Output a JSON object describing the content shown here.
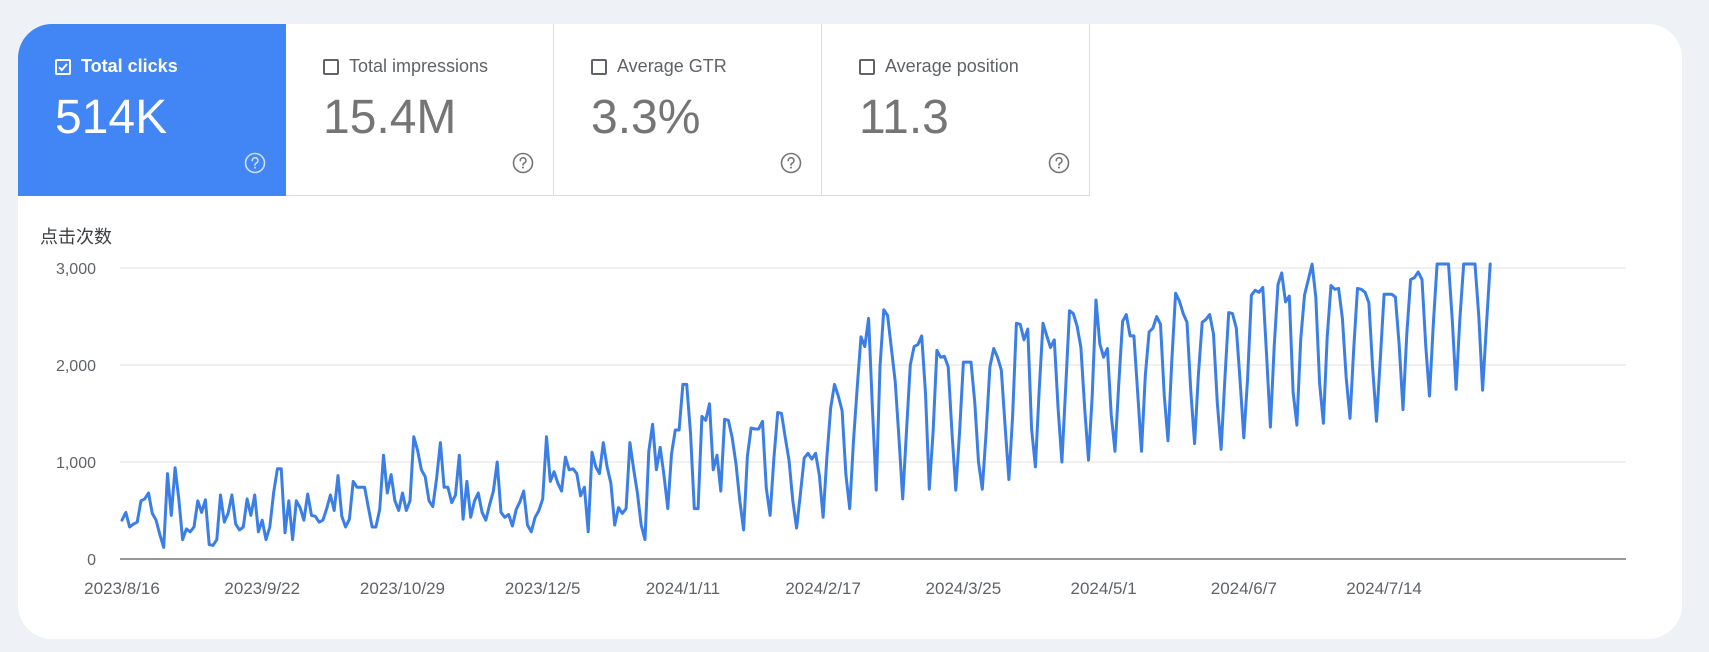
{
  "metrics": [
    {
      "label": "Total clicks",
      "value": "514K",
      "checked": true
    },
    {
      "label": "Total impressions",
      "value": "15.4M",
      "checked": false
    },
    {
      "label": "Average GTR",
      "value": "3.3%",
      "checked": false
    },
    {
      "label": "Average position",
      "value": "11.3",
      "checked": false
    }
  ],
  "colors": {
    "accent": "#4285f4",
    "line": "#3b7fe6"
  },
  "chart_data": {
    "type": "line",
    "title": "",
    "ylabel": "点击次数",
    "xlabel": "",
    "ylim": [
      0,
      3000
    ],
    "yticks": [
      0,
      1000,
      2000,
      3000
    ],
    "ytick_labels": [
      "0",
      "1,000",
      "2,000",
      "3,000"
    ],
    "x_start": "2023-08-16",
    "x_tick_labels": [
      "2023/8/16",
      "2023/9/22",
      "2023/10/29",
      "2023/12/5",
      "2024/1/11",
      "2024/2/17",
      "2024/3/25",
      "2024/5/1",
      "2024/6/7",
      "2024/7/14"
    ],
    "x_tick_step_days": 37,
    "grid": true,
    "series": [
      {
        "name": "Total clicks",
        "values": [
          400,
          480,
          330,
          360,
          380,
          600,
          620,
          680,
          470,
          400,
          250,
          120,
          880,
          450,
          940,
          620,
          200,
          310,
          280,
          330,
          600,
          480,
          610,
          150,
          140,
          200,
          660,
          380,
          470,
          660,
          360,
          300,
          330,
          620,
          450,
          660,
          280,
          400,
          200,
          330,
          680,
          930,
          930,
          270,
          600,
          200,
          600,
          530,
          400,
          670,
          450,
          440,
          380,
          400,
          520,
          660,
          500,
          860,
          440,
          330,
          410,
          800,
          740,
          740,
          740,
          530,
          330,
          330,
          510,
          1070,
          680,
          870,
          600,
          500,
          680,
          500,
          600,
          1260,
          1120,
          920,
          850,
          600,
          540,
          830,
          1200,
          740,
          740,
          580,
          660,
          1070,
          410,
          800,
          430,
          600,
          680,
          480,
          400,
          560,
          700,
          1000,
          480,
          430,
          460,
          340,
          510,
          590,
          700,
          350,
          280,
          430,
          500,
          620,
          1260,
          800,
          900,
          780,
          700,
          1050,
          920,
          930,
          880,
          650,
          740,
          280,
          1100,
          950,
          880,
          1200,
          950,
          780,
          350,
          530,
          470,
          520,
          1200,
          930,
          680,
          350,
          200,
          1110,
          1390,
          920,
          1150,
          860,
          520,
          1080,
          1330,
          1330,
          1800,
          1800,
          1300,
          520,
          520,
          1470,
          1430,
          1600,
          920,
          1070,
          700,
          1440,
          1430,
          1250,
          980,
          600,
          300,
          1060,
          1350,
          1340,
          1340,
          1420,
          730,
          450,
          1040,
          1510,
          1500,
          1250,
          1020,
          600,
          320,
          670,
          1040,
          1090,
          1030,
          1090,
          860,
          430,
          1050,
          1560,
          1800,
          1680,
          1530,
          870,
          520,
          1220,
          1780,
          2290,
          2190,
          2480,
          1560,
          710,
          1980,
          2570,
          2510,
          2170,
          1830,
          1240,
          620,
          1320,
          2000,
          2190,
          2210,
          2300,
          1710,
          720,
          1310,
          2150,
          2080,
          2090,
          1980,
          1300,
          710,
          1310,
          2030,
          2030,
          2030,
          1610,
          1000,
          720,
          1300,
          1980,
          2170,
          2080,
          1950,
          1370,
          820,
          1470,
          2430,
          2420,
          2260,
          2370,
          1340,
          950,
          1740,
          2430,
          2300,
          2180,
          2260,
          1550,
          1000,
          1770,
          2560,
          2530,
          2400,
          2180,
          1550,
          1020,
          1680,
          2670,
          2220,
          2080,
          2170,
          1490,
          1110,
          1810,
          2450,
          2520,
          2300,
          2300,
          1710,
          1110,
          1890,
          2340,
          2380,
          2500,
          2420,
          1680,
          1220,
          2040,
          2740,
          2660,
          2530,
          2440,
          1730,
          1190,
          1900,
          2440,
          2470,
          2520,
          2320,
          1610,
          1130,
          1860,
          2540,
          2530,
          2380,
          1850,
          1250,
          1860,
          2720,
          2770,
          2750,
          2800,
          2100,
          1360,
          2190,
          2830,
          2950,
          2650,
          2710,
          1720,
          1380,
          2260,
          2720,
          2880,
          3040,
          2700,
          1810,
          1400,
          2290,
          2820,
          2780,
          2790,
          2480,
          1870,
          1450,
          2180,
          2790,
          2780,
          2750,
          2640,
          1960,
          1420,
          2060,
          2730,
          2730,
          2730,
          2700,
          2200,
          1540,
          2320,
          2880,
          2900,
          2960,
          2880,
          2190,
          1680,
          2420,
          3080,
          3200,
          3080,
          3090,
          2460,
          1750,
          2480,
          3200,
          3200,
          3150,
          3200,
          2500,
          1740,
          2400,
          3200
        ]
      }
    ]
  }
}
